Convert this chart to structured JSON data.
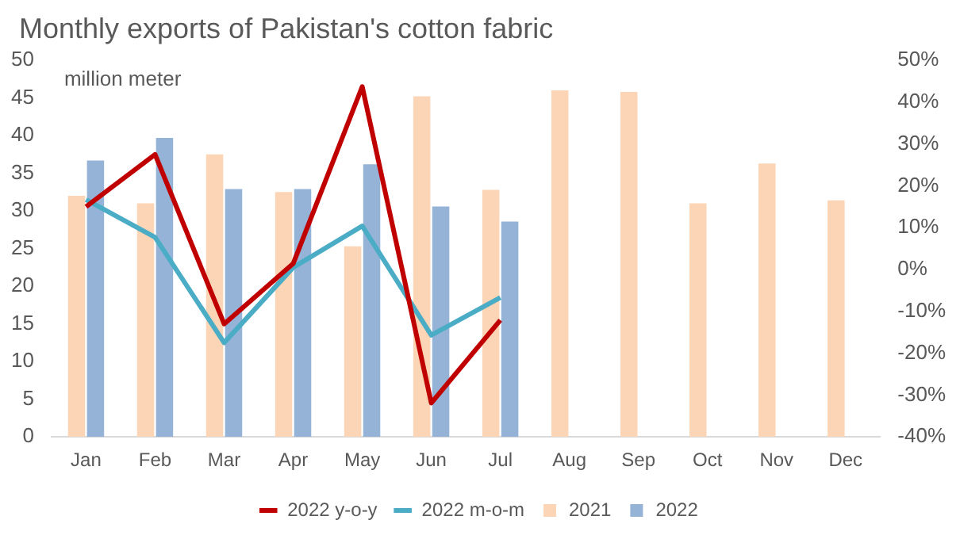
{
  "chart_data": {
    "type": "bar",
    "title": "Monthly exports of Pakistan's cotton fabric",
    "ylabel": "million meter",
    "categories": [
      "Jan",
      "Feb",
      "Mar",
      "Apr",
      "May",
      "Jun",
      "Jul",
      "Aug",
      "Sep",
      "Oct",
      "Nov",
      "Dec"
    ],
    "series": [
      {
        "name": "2021",
        "color": "#fbd5b5",
        "values": [
          32,
          31,
          37.5,
          32.5,
          25.3,
          45.2,
          32.8,
          46,
          45.8,
          31,
          36.3,
          31.4
        ]
      },
      {
        "name": "2022",
        "color": "#95b3d7",
        "values": [
          36.7,
          39.7,
          32.9,
          32.9,
          36.2,
          30.6,
          28.6,
          null,
          null,
          null,
          null,
          null
        ]
      },
      {
        "name": "2022 y-o-y",
        "type": "line",
        "axis": "y2",
        "color": "#c00000",
        "values": [
          15,
          27.5,
          -13,
          1.4,
          43.7,
          -31.9,
          -12.1,
          null,
          null,
          null,
          null,
          null
        ]
      },
      {
        "name": "2022 m-o-m",
        "type": "line",
        "axis": "y2",
        "color": "#4bacc6",
        "values": [
          16.7,
          7.7,
          -17.5,
          0.5,
          10.4,
          -15.7,
          -6.7,
          null,
          null,
          null,
          null,
          null
        ]
      }
    ],
    "ylim": [
      0,
      50
    ],
    "yticks": [
      0,
      5,
      10,
      15,
      20,
      25,
      30,
      35,
      40,
      45,
      50
    ],
    "y2lim": [
      -40,
      50
    ],
    "y2ticks": [
      {
        "value": -40,
        "label": "-40%"
      },
      {
        "value": -30,
        "label": "-30%"
      },
      {
        "value": -20,
        "label": "-20%"
      },
      {
        "value": -10,
        "label": "-10%"
      },
      {
        "value": 0,
        "label": "0%"
      },
      {
        "value": 10,
        "label": "10%"
      },
      {
        "value": 20,
        "label": "20%"
      },
      {
        "value": 30,
        "label": "30%"
      },
      {
        "value": 40,
        "label": "40%"
      },
      {
        "value": 50,
        "label": "50%"
      }
    ],
    "grid": false,
    "legend": "bottom",
    "marker": "none",
    "line_style": "solid"
  }
}
